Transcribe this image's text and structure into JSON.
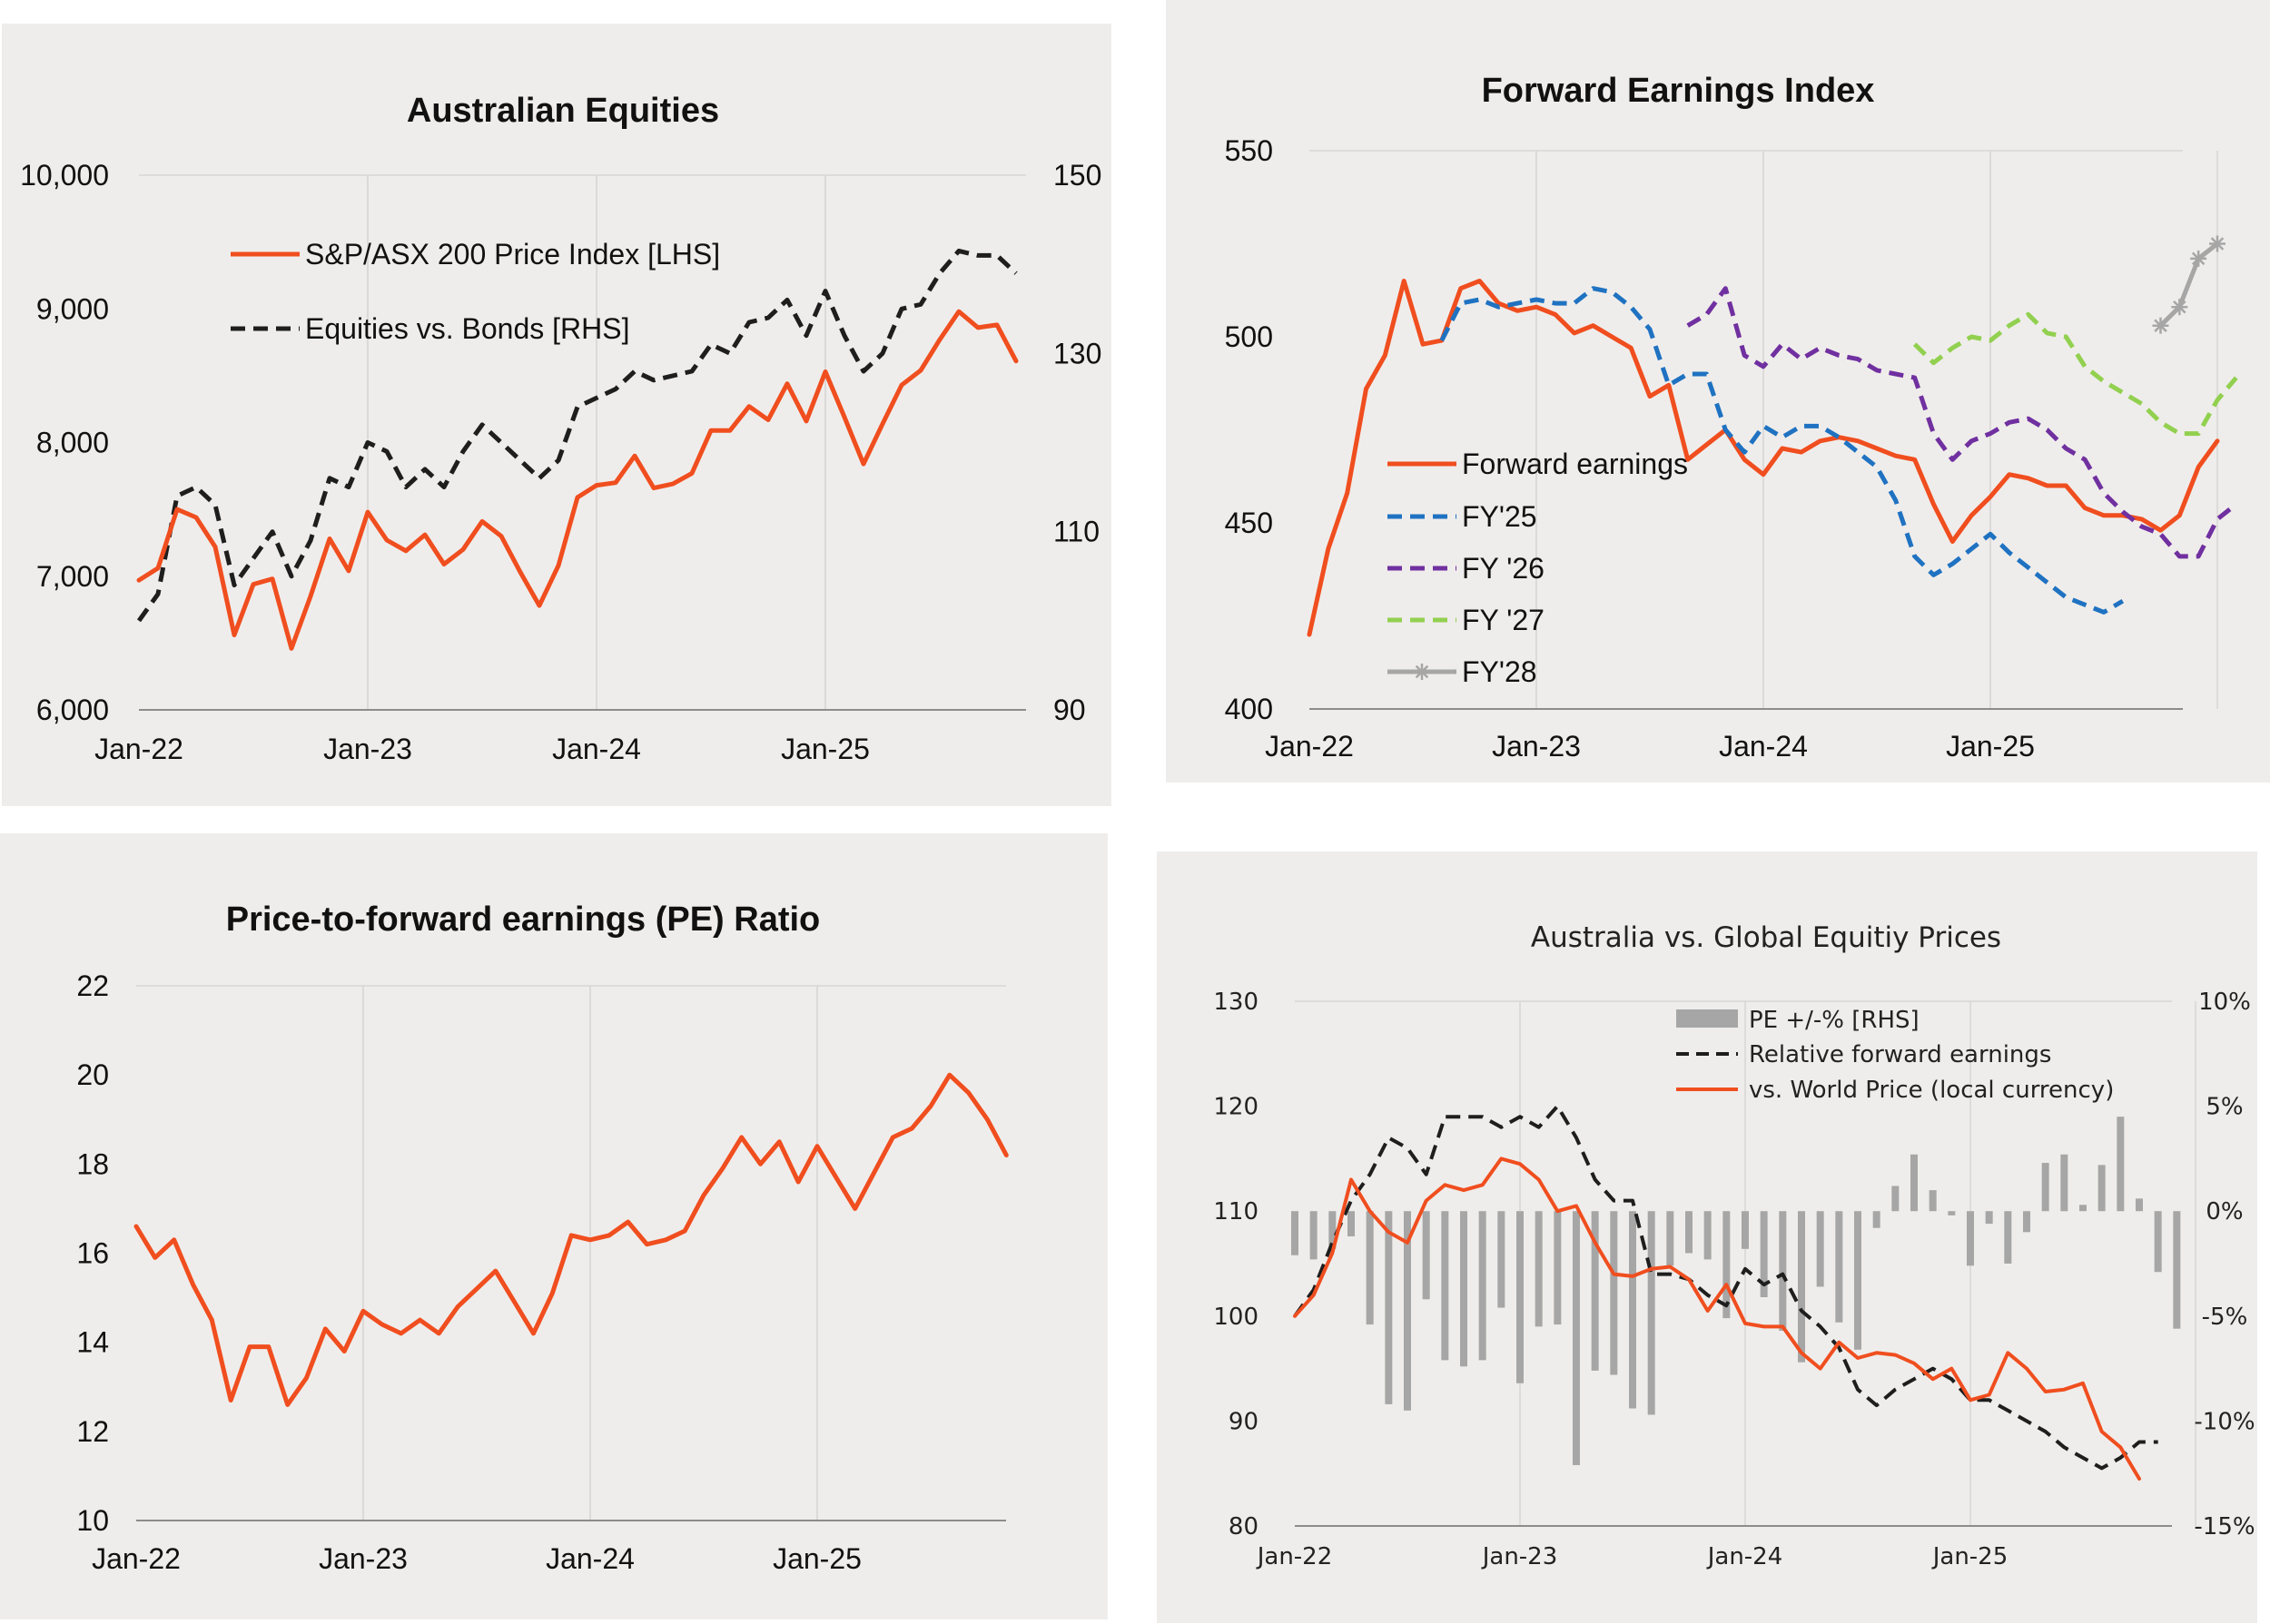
{
  "colors": {
    "orange": "#f04e1f",
    "black": "#1e1e1e",
    "blue": "#1f72c1",
    "purple": "#7030a0",
    "green": "#92d050",
    "grey": "#a6a6a6",
    "panel_bg": "#efedeb",
    "grid": "#d9d7d5"
  },
  "chart_data": [
    {
      "type": "line",
      "title": "Australian Equities",
      "x_labels": [
        "Jan-22",
        "Jan-23",
        "Jan-24",
        "Jan-25"
      ],
      "y_left": {
        "min": 6000,
        "max": 10000,
        "ticks": [
          "6,000",
          "7,000",
          "8,000",
          "9,000",
          "10,000"
        ]
      },
      "y_right": {
        "min": 90,
        "max": 150,
        "ticks": [
          "90",
          "110",
          "130",
          "150"
        ]
      },
      "legend": [
        "S&P/ASX 200 Price Index [LHS]",
        "Equities vs. Bonds [RHS]"
      ],
      "grid": "vertical",
      "series": [
        {
          "name": "S&P/ASX 200 Price Index [LHS]",
          "axis": "left",
          "color": "orange",
          "style": "solid",
          "values": [
            6970,
            7060,
            7500,
            7440,
            7220,
            6560,
            6940,
            6980,
            6460,
            6850,
            7280,
            7040,
            7480,
            7270,
            7190,
            7310,
            7090,
            7200,
            7410,
            7300,
            7030,
            6780,
            7080,
            7590,
            7680,
            7700,
            7900,
            7660,
            7690,
            7770,
            8090,
            8090,
            8270,
            8170,
            8440,
            8160,
            8530,
            8190,
            7840,
            8140,
            8430,
            8540,
            8770,
            8980,
            8860,
            8880,
            8610
          ]
        },
        {
          "name": "Equities vs. Bonds [RHS]",
          "axis": "right",
          "color": "black",
          "style": "dashed",
          "values": [
            100,
            103,
            114,
            115,
            113,
            104,
            107,
            110,
            105,
            109,
            116,
            115,
            120,
            119,
            115,
            117,
            115,
            119,
            122,
            120,
            118,
            116,
            118,
            124,
            125,
            126,
            128,
            127,
            127.5,
            128,
            131,
            130,
            133.5,
            134,
            136,
            132,
            137,
            132,
            128,
            130,
            135,
            135.5,
            139,
            141.5,
            141,
            141,
            139
          ]
        }
      ]
    },
    {
      "type": "line",
      "title": "Forward Earnings Index",
      "x_labels": [
        "Jan-22",
        "Jan-23",
        "Jan-24",
        "Jan-25"
      ],
      "y": {
        "min": 400,
        "max": 550,
        "ticks": [
          "400",
          "450",
          "500",
          "550"
        ]
      },
      "legend": [
        "Forward earnings",
        "FY'25",
        "FY '26",
        "FY '27",
        "FY'28"
      ],
      "grid": "vertical",
      "series": [
        {
          "name": "Forward earnings",
          "color": "orange",
          "style": "solid",
          "start": 0,
          "values": [
            420,
            443,
            458,
            486,
            495,
            515,
            498,
            499,
            513,
            515,
            509,
            507,
            508,
            506,
            501,
            503,
            500,
            497,
            484,
            487,
            467,
            471,
            475,
            467,
            463,
            470,
            469,
            472,
            473,
            472,
            470,
            468,
            467,
            455,
            445,
            452,
            457,
            463,
            462,
            460,
            460,
            454,
            452,
            452,
            451,
            448,
            452,
            465,
            472
          ]
        },
        {
          "name": "FY'25",
          "color": "blue",
          "style": "dashed",
          "start": 7,
          "values": [
            499,
            509,
            510,
            508,
            509,
            510,
            509,
            509,
            513,
            512,
            508,
            502,
            487,
            490,
            490,
            475,
            469,
            476,
            473,
            476,
            476,
            473,
            469,
            465,
            456,
            441,
            436,
            439,
            443,
            447,
            442,
            438,
            434,
            430,
            428,
            426,
            429
          ]
        },
        {
          "name": "FY '26",
          "color": "purple",
          "style": "dashed",
          "start": 20,
          "values": [
            503,
            506,
            513,
            495,
            492,
            498,
            494,
            497,
            495,
            494,
            491,
            490,
            489,
            474,
            467,
            472,
            474,
            477,
            478,
            475,
            470,
            467,
            458,
            453,
            449,
            447,
            441,
            441,
            451,
            455
          ]
        },
        {
          "name": "FY '27",
          "color": "green",
          "style": "dashed",
          "start": 32,
          "values": [
            498,
            493,
            497,
            500,
            499,
            503,
            506,
            501,
            500,
            492,
            488,
            485,
            482,
            477,
            474,
            474,
            483,
            489
          ]
        },
        {
          "name": "FY'28",
          "color": "grey",
          "style": "solid-star",
          "start": 45,
          "values": [
            503,
            508,
            521,
            525
          ]
        }
      ]
    },
    {
      "type": "line",
      "title": "Price-to-forward earnings (PE) Ratio",
      "x_labels": [
        "Jan-22",
        "Jan-23",
        "Jan-24",
        "Jan-25"
      ],
      "y": {
        "min": 10,
        "max": 22,
        "ticks": [
          "10",
          "12",
          "14",
          "16",
          "18",
          "20",
          "22"
        ]
      },
      "grid": "vertical",
      "series": [
        {
          "name": "",
          "color": "orange",
          "style": "solid",
          "values": [
            16.6,
            15.9,
            16.3,
            15.3,
            14.5,
            12.7,
            13.9,
            13.9,
            12.6,
            13.2,
            14.3,
            13.8,
            14.7,
            14.4,
            14.2,
            14.5,
            14.2,
            14.8,
            15.2,
            15.6,
            14.9,
            14.2,
            15.1,
            16.4,
            16.3,
            16.4,
            16.7,
            16.2,
            16.3,
            16.5,
            17.3,
            17.9,
            18.6,
            18.0,
            18.5,
            17.6,
            18.4,
            17.7,
            17.0,
            17.8,
            18.6,
            18.8,
            19.3,
            20.0,
            19.6,
            19.0,
            18.2
          ]
        }
      ]
    },
    {
      "type": "bar+line",
      "title": "Australia vs. Global Equitiy Prices",
      "x_labels": [
        "Jan-22",
        "Jan-23",
        "Jan-24",
        "Jan-25"
      ],
      "y_left": {
        "min": 80,
        "max": 130,
        "ticks": [
          "80",
          "90",
          "100",
          "110",
          "120",
          "130"
        ]
      },
      "y_right": {
        "min": -15,
        "max": 10,
        "ticks": [
          "-15%",
          "-10%",
          "-5%",
          "0%",
          "5%",
          "10%"
        ]
      },
      "legend": [
        "PE +/-% [RHS]",
        "Relative forward earnings",
        "vs. World Price (local currency)"
      ],
      "grid": "vertical",
      "series": [
        {
          "name": "PE +/-% [RHS]",
          "type": "bar",
          "axis": "right",
          "color": "grey",
          "values": [
            -2.1,
            -2.3,
            -1.8,
            -1.2,
            -5.4,
            -9.2,
            -9.5,
            -4.2,
            -7.1,
            -7.4,
            -7.1,
            -4.6,
            -8.2,
            -5.5,
            -5.4,
            -12.1,
            -7.6,
            -7.8,
            -9.4,
            -9.7,
            -2.6,
            -2.0,
            -2.3,
            -5.1,
            -1.8,
            -4.1,
            -5.7,
            -7.2,
            -3.6,
            -5.3,
            -6.6,
            -0.8,
            1.2,
            2.7,
            1.0,
            -0.2,
            -2.6,
            -0.6,
            -2.5,
            -1.0,
            2.3,
            2.7,
            0.3,
            2.2,
            4.5,
            0.6,
            -2.9,
            -5.6
          ]
        },
        {
          "name": "Relative forward earnings",
          "type": "line",
          "axis": "left",
          "color": "black",
          "style": "dashed",
          "values": [
            100,
            102.5,
            107,
            111,
            113.5,
            117,
            116,
            113.5,
            119,
            119,
            119,
            118,
            119,
            118,
            120,
            117,
            113,
            111,
            111,
            104,
            104,
            103.5,
            102,
            101,
            104.5,
            103,
            104,
            100.5,
            99,
            97,
            93,
            91.5,
            93,
            94,
            95,
            94,
            92,
            92,
            91,
            90,
            89,
            87.5,
            86.5,
            85.5,
            86.5,
            88,
            88
          ]
        },
        {
          "name": "vs. World Price (local currency)",
          "type": "line",
          "axis": "left",
          "color": "orange",
          "style": "solid",
          "values": [
            100,
            102,
            106,
            113,
            110,
            108,
            107,
            111,
            112.5,
            112,
            112.5,
            115,
            114.5,
            113,
            110,
            110.5,
            107,
            104,
            103.8,
            104.5,
            104.7,
            103.5,
            100.5,
            103,
            99.3,
            99,
            99,
            96.5,
            95,
            97.5,
            96,
            96.5,
            96.3,
            95.5,
            94,
            95,
            92,
            92.5,
            96.5,
            95,
            92.8,
            93,
            93.6,
            89,
            87.5,
            84.5
          ]
        }
      ]
    }
  ]
}
